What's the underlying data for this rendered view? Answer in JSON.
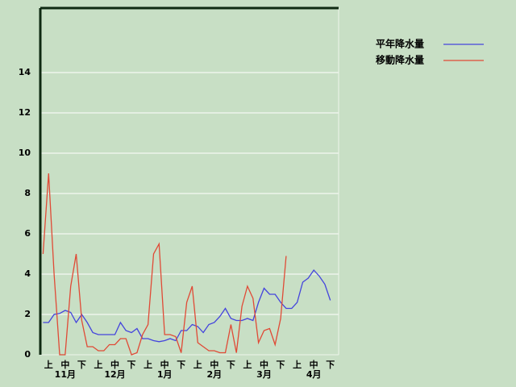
{
  "chart_data": {
    "type": "line",
    "categories": [
      null,
      "上",
      null,
      null,
      "中",
      null,
      null,
      "下",
      null,
      null,
      "上",
      null,
      null,
      "中",
      null,
      null,
      "下",
      null,
      null,
      "上",
      null,
      null,
      "中",
      null,
      null,
      "下",
      null,
      null,
      "上",
      null,
      null,
      "中",
      null,
      null,
      "下",
      null,
      null,
      "上",
      null,
      null,
      "中",
      null,
      null,
      "下",
      null,
      null,
      "上",
      null,
      null,
      "中",
      null,
      null,
      "下",
      null
    ],
    "months": [
      "11月",
      "12月",
      "1月",
      "2月",
      "3月",
      "4月"
    ],
    "series": [
      {
        "name": "平年降水量",
        "color": "#4444dd",
        "values": [
          1.6,
          1.6,
          2.0,
          2.05,
          2.2,
          2.1,
          1.6,
          2.0,
          1.6,
          1.1,
          1.0,
          1.0,
          1.0,
          1.0,
          1.6,
          1.2,
          1.1,
          1.3,
          0.8,
          0.8,
          0.7,
          0.65,
          0.7,
          0.8,
          0.7,
          1.2,
          1.2,
          1.5,
          1.4,
          1.1,
          1.5,
          1.6,
          1.9,
          2.3,
          1.8,
          1.7,
          1.7,
          1.8,
          1.7,
          2.6,
          3.3,
          3.0,
          3.0,
          2.6,
          2.3,
          2.3,
          2.6,
          3.6,
          3.8,
          4.2,
          3.9,
          3.5,
          2.7,
          null
        ]
      },
      {
        "name": "移動降水量",
        "color": "#e04a36",
        "values": [
          5.0,
          9.0,
          4.0,
          0,
          0,
          3.4,
          5.0,
          1.7,
          0.4,
          0.4,
          0.2,
          0.2,
          0.5,
          0.5,
          0.8,
          0.8,
          0,
          0.1,
          1.0,
          1.5,
          5.0,
          5.5,
          1.0,
          1.0,
          0.9,
          0.1,
          2.6,
          3.4,
          0.6,
          0.4,
          0.2,
          0.2,
          0.1,
          0.1,
          1.5,
          0.1,
          2.4,
          3.4,
          2.8,
          0.6,
          1.2,
          1.3,
          0.5,
          1.8,
          4.9,
          null,
          null,
          null,
          null,
          null,
          null,
          null,
          null,
          null
        ]
      }
    ],
    "ylim": [
      0,
      17.2
    ],
    "yticks": [
      0,
      2,
      4,
      6,
      8,
      10,
      12,
      14
    ],
    "grid": true,
    "legend": "top-right"
  }
}
